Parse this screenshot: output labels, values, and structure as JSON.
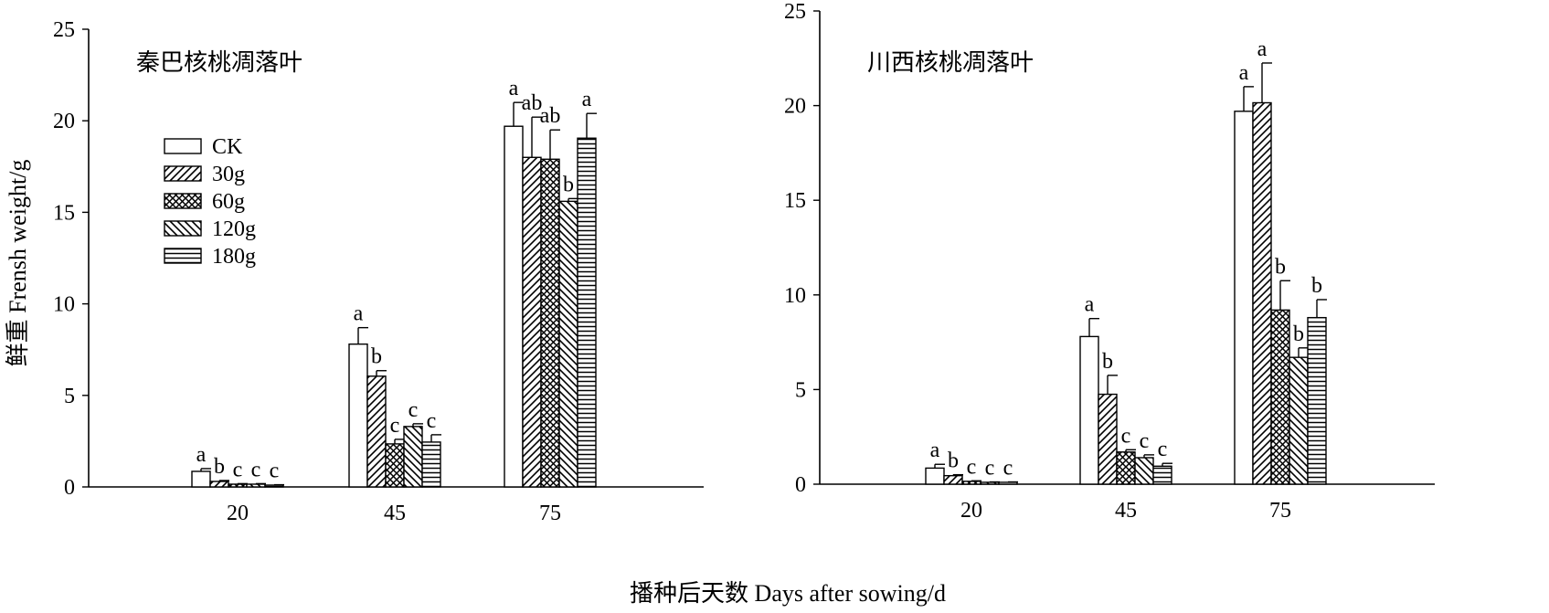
{
  "chart_data": [
    {
      "type": "bar",
      "title": "秦巴核桃凋落叶",
      "ylabel": "鲜重 Frensh weight/g",
      "ylim": [
        0,
        25
      ],
      "yticks": [
        0,
        5,
        10,
        15,
        20,
        25
      ],
      "categories": [
        "20",
        "45",
        "75"
      ],
      "legend": {
        "placement": "upper-left",
        "entries": [
          "CK",
          "30g",
          "60g",
          "120g",
          "180g"
        ]
      },
      "series": [
        {
          "name": "CK",
          "pattern": "blank",
          "values": [
            0.85,
            7.8,
            19.7
          ],
          "errors": [
            0.15,
            0.9,
            1.3
          ],
          "labels": [
            "a",
            "a",
            "a"
          ]
        },
        {
          "name": "30g",
          "pattern": "diagonal",
          "values": [
            0.3,
            6.05,
            18.0
          ],
          "errors": [
            0.05,
            0.3,
            2.2
          ],
          "labels": [
            "b",
            "b",
            "ab"
          ]
        },
        {
          "name": "60g",
          "pattern": "crosshatch",
          "values": [
            0.15,
            2.35,
            17.9
          ],
          "errors": [
            0.03,
            0.25,
            1.6
          ],
          "labels": [
            "c",
            "c",
            "ab"
          ]
        },
        {
          "name": "120g",
          "pattern": "backslash",
          "values": [
            0.15,
            3.3,
            15.6
          ],
          "errors": [
            0.03,
            0.15,
            0.15
          ],
          "labels": [
            "c",
            "c",
            "b"
          ]
        },
        {
          "name": "180g",
          "pattern": "horizontal",
          "values": [
            0.1,
            2.45,
            19.05
          ],
          "errors": [
            0.02,
            0.4,
            1.35
          ],
          "labels": [
            "c",
            "c",
            "a"
          ]
        }
      ]
    },
    {
      "type": "bar",
      "title": "川西核桃凋落叶",
      "ylim": [
        0,
        25
      ],
      "yticks": [
        0,
        5,
        10,
        15,
        20,
        25
      ],
      "categories": [
        "20",
        "45",
        "75"
      ],
      "series": [
        {
          "name": "CK",
          "pattern": "blank",
          "values": [
            0.85,
            7.8,
            19.7
          ],
          "errors": [
            0.2,
            0.95,
            1.3
          ],
          "labels": [
            "a",
            "a",
            "a"
          ]
        },
        {
          "name": "30g",
          "pattern": "diagonal",
          "values": [
            0.45,
            4.75,
            20.15
          ],
          "errors": [
            0.05,
            1.0,
            2.1
          ],
          "labels": [
            "b",
            "b",
            "a"
          ]
        },
        {
          "name": "60g",
          "pattern": "crosshatch",
          "values": [
            0.15,
            1.7,
            9.2
          ],
          "errors": [
            0.03,
            0.12,
            1.55
          ],
          "labels": [
            "c",
            "c",
            "b"
          ]
        },
        {
          "name": "120g",
          "pattern": "backslash",
          "values": [
            0.1,
            1.4,
            6.7
          ],
          "errors": [
            0.02,
            0.15,
            0.5
          ],
          "labels": [
            "c",
            "c",
            "b"
          ]
        },
        {
          "name": "180g",
          "pattern": "horizontal",
          "values": [
            0.1,
            0.95,
            8.8
          ],
          "errors": [
            0.02,
            0.15,
            0.95
          ],
          "labels": [
            "c",
            "c",
            "b"
          ]
        }
      ]
    }
  ],
  "xlabel": "播种后天数 Days after sowing/d",
  "colors": {
    "axis": "#000000",
    "bar_fill": "#ffffff",
    "pattern": "#000000"
  }
}
